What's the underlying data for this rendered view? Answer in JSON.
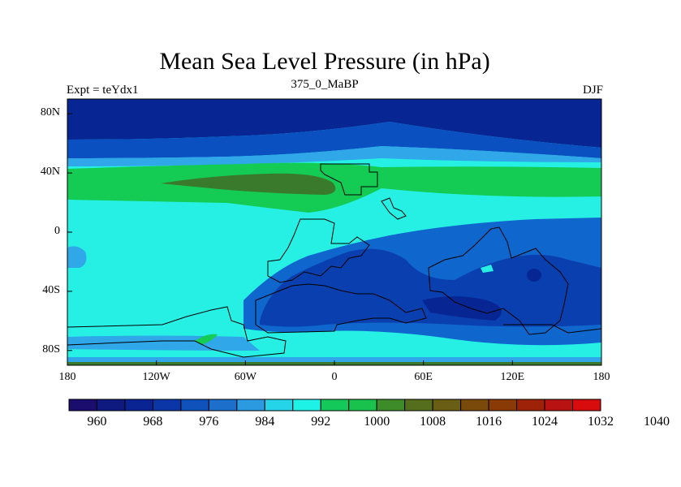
{
  "title": "Mean Sea Level Pressure (in hPa)",
  "left_label": "Expt = teYdx1",
  "center_label": "375_0_MaBP",
  "right_label": "DJF",
  "lat_axis": [
    {
      "label": "80N",
      "value": 80
    },
    {
      "label": "40N",
      "value": 40
    },
    {
      "label": "0",
      "value": 0
    },
    {
      "label": "40S",
      "value": -40
    },
    {
      "label": "80S",
      "value": -80
    }
  ],
  "lon_axis": [
    {
      "label": "180",
      "value": -180
    },
    {
      "label": "120W",
      "value": -120
    },
    {
      "label": "60W",
      "value": -60
    },
    {
      "label": "0",
      "value": 0
    },
    {
      "label": "60E",
      "value": 60
    },
    {
      "label": "120E",
      "value": 120
    },
    {
      "label": "180",
      "value": 180
    }
  ],
  "colorbar": {
    "colors": [
      "#1a0d6e",
      "#0e1a80",
      "#0b2493",
      "#0a36a8",
      "#0f52bb",
      "#1d6fcc",
      "#2b9ae0",
      "#26d4ea",
      "#1ef2e6",
      "#14c85a",
      "#18c24d",
      "#3e8b2a",
      "#556e1e",
      "#6a5d14",
      "#7a4a0a",
      "#8a3a05",
      "#9e2208",
      "#b81212",
      "#d80c0c"
    ],
    "labels": [
      "960",
      "968",
      "976",
      "984",
      "992",
      "1000",
      "1008",
      "1016",
      "1024",
      "1032",
      "1040"
    ]
  },
  "colors": {
    "deep_blue": "#072694",
    "mid_blue": "#0a3fb0",
    "cyan": "#26f0e4",
    "light_blue": "#2fa7e8",
    "green": "#14cb54",
    "olive": "#3a7a2c"
  }
}
